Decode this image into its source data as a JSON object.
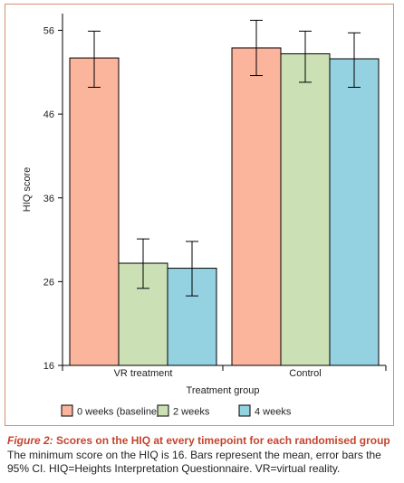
{
  "figure": {
    "label": "Figure 2:",
    "title": "Scores on the HIQ at every timepoint for each randomised group",
    "caption": "The minimum score on the HIQ is 16. Bars represent the mean, error bars the 95% CI. HIQ=Heights Interpretation Questionnaire. VR=virtual reality."
  },
  "colors": {
    "border": "#d88d78",
    "bar_outline": "#000000",
    "title_accent": "#c4442e"
  },
  "chart_data": {
    "type": "bar",
    "title": "",
    "xlabel": "Treatment group",
    "ylabel": "HIQ score",
    "categories": [
      "VR treatment",
      "Control"
    ],
    "ylim": [
      16,
      58
    ],
    "yticks": [
      16,
      26,
      36,
      46,
      56
    ],
    "grid": false,
    "legend_position": "bottom",
    "series": [
      {
        "name": "0 weeks (baseline)",
        "color": "#fbb59c",
        "values": [
          52.7,
          53.9
        ],
        "ci_low": [
          49.2,
          50.6
        ],
        "ci_high": [
          55.9,
          57.2
        ]
      },
      {
        "name": "2 weeks",
        "color": "#cbe0b5",
        "values": [
          28.2,
          53.2
        ],
        "ci_low": [
          25.2,
          49.8
        ],
        "ci_high": [
          31.1,
          55.9
        ]
      },
      {
        "name": "4 weeks",
        "color": "#94d2e2",
        "values": [
          27.6,
          52.6
        ],
        "ci_low": [
          24.3,
          49.2
        ],
        "ci_high": [
          30.8,
          55.7
        ]
      }
    ]
  }
}
